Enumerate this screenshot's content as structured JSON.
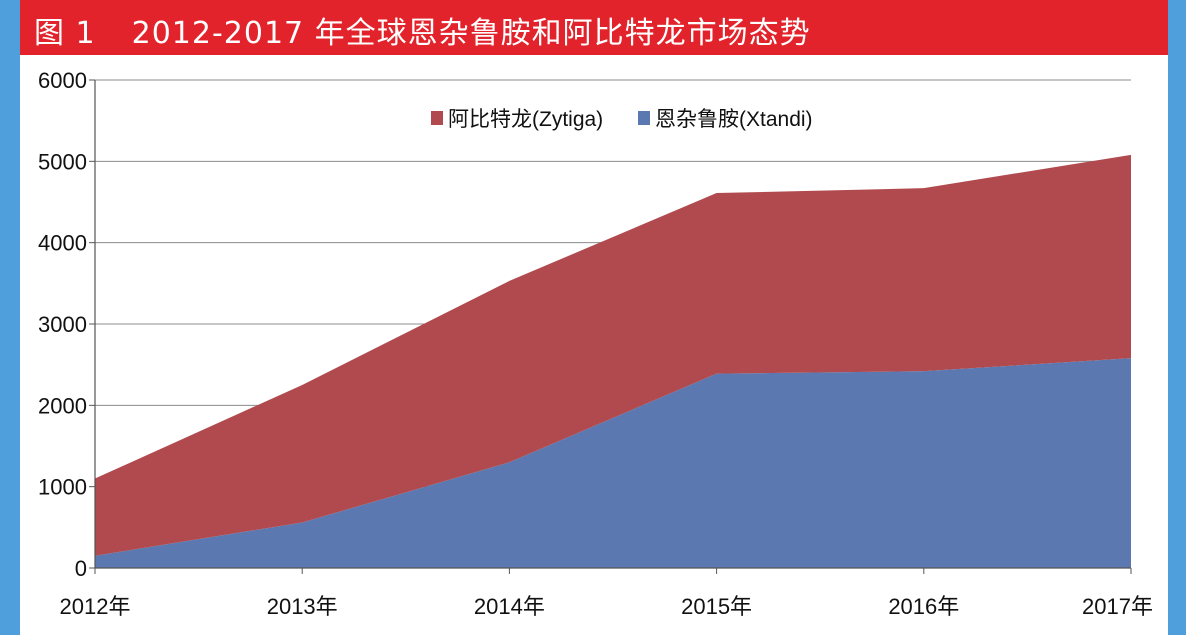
{
  "figure": {
    "label": "图 1",
    "title": "2012-2017 年全球恩杂鲁胺和阿比特龙市场态势"
  },
  "colors": {
    "frame": "#4f9fdc",
    "title_bar": "#e3232b",
    "zytiga": "#b04a4e",
    "xtandi": "#5b79b0"
  },
  "chart_data": {
    "type": "area",
    "stacked": true,
    "categories": [
      "2012年",
      "2013年",
      "2014年",
      "2015年",
      "2016年",
      "2017年"
    ],
    "series": [
      {
        "name": "恩杂鲁胺(Xtandi)",
        "values": [
          150,
          560,
          1300,
          2390,
          2420,
          2580
        ]
      },
      {
        "name": "阿比特龙(Zytiga)",
        "values": [
          950,
          1690,
          2230,
          2220,
          2250,
          2500
        ]
      }
    ],
    "stack_totals": [
      1100,
      2250,
      3530,
      4610,
      4670,
      5080
    ],
    "ylim": [
      0,
      6000
    ],
    "yticks": [
      0,
      1000,
      2000,
      3000,
      4000,
      5000,
      6000
    ],
    "legend": [
      "阿比特龙(Zytiga)",
      "恩杂鲁胺(Xtandi)"
    ],
    "legend_position": "top-center",
    "grid": "horizontal"
  }
}
